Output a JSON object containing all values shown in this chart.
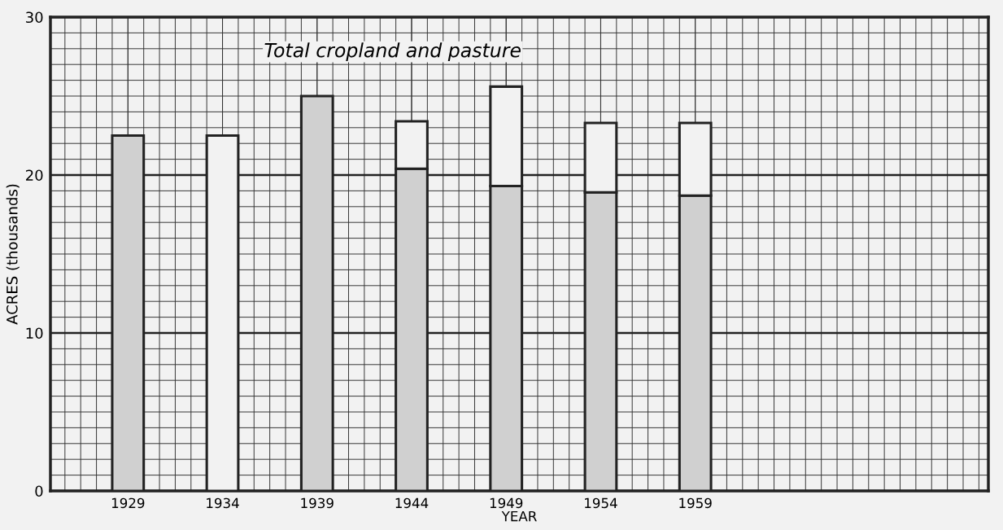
{
  "chart_data": {
    "type": "bar",
    "title": "Total cropland and pasture",
    "xlabel": "YEAR",
    "ylabel": "ACRES (thousands)",
    "categories": [
      "1929",
      "1934",
      "1939",
      "1944",
      "1949",
      "1954",
      "1959"
    ],
    "stacked": true,
    "series": [
      {
        "color": "#d0d0d0",
        "values": [
          22.5,
          null,
          25.0,
          20.4,
          19.3,
          18.9,
          18.7
        ]
      },
      {
        "color": "#f2f2f2",
        "values": [
          null,
          22.5,
          null,
          3.0,
          6.3,
          4.4,
          4.6
        ]
      }
    ],
    "ylim": [
      0,
      30
    ],
    "yticks": [
      0,
      10,
      20,
      30
    ],
    "grid": true
  }
}
